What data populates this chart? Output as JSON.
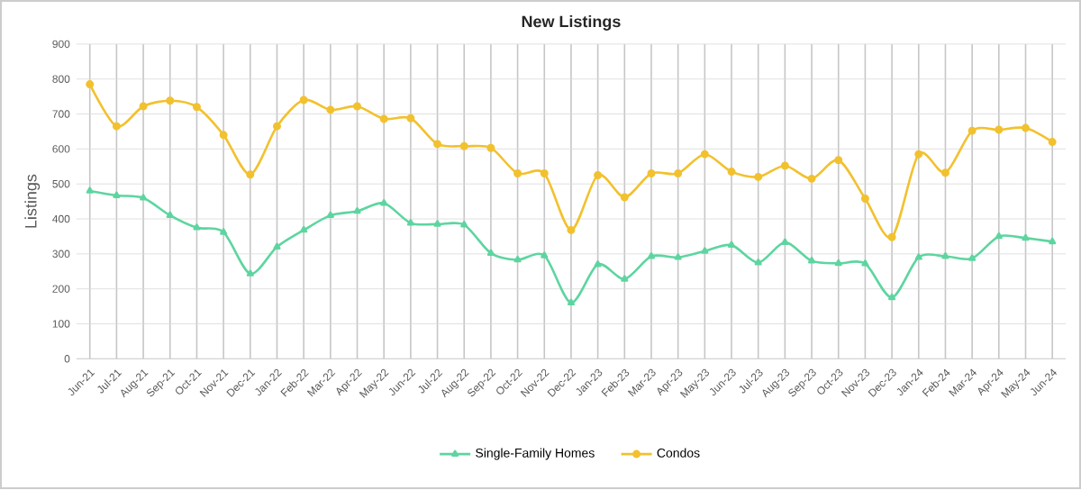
{
  "chart_data": {
    "type": "line",
    "title": "New Listings",
    "ylabel": "Listings",
    "categories": [
      "Jun-21",
      "Jul-21",
      "Aug-21",
      "Sep-21",
      "Oct-21",
      "Nov-21",
      "Dec-21",
      "Jan-22",
      "Feb-22",
      "Mar-22",
      "Apr-22",
      "May-22",
      "Jun-22",
      "Jul-22",
      "Aug-22",
      "Sep-22",
      "Oct-22",
      "Nov-22",
      "Dec-22",
      "Jan-23",
      "Feb-23",
      "Mar-23",
      "Apr-23",
      "May-23",
      "Jun-23",
      "Jul-23",
      "Aug-23",
      "Sep-23",
      "Oct-23",
      "Nov-23",
      "Dec-23",
      "Jan-24",
      "Feb-24",
      "Mar-24",
      "Apr-24",
      "May-24",
      "Jun-24"
    ],
    "series": [
      {
        "name": "Single-Family Homes",
        "color": "#5dd5a0",
        "marker": "triangle",
        "values": [
          480,
          467,
          460,
          410,
          375,
          362,
          243,
          320,
          368,
          410,
          422,
          445,
          388,
          385,
          383,
          302,
          283,
          295,
          160,
          270,
          228,
          293,
          290,
          308,
          325,
          275,
          333,
          280,
          273,
          272,
          175,
          290,
          293,
          287,
          350,
          345,
          335
        ]
      },
      {
        "name": "Condos",
        "color": "#f2c12e",
        "marker": "circle",
        "values": [
          785,
          665,
          722,
          738,
          720,
          640,
          527,
          665,
          740,
          712,
          722,
          686,
          688,
          614,
          608,
          603,
          530,
          530,
          368,
          525,
          462,
          530,
          530,
          585,
          535,
          520,
          552,
          515,
          568,
          458,
          348,
          585,
          532,
          652,
          655,
          660,
          620
        ]
      }
    ],
    "ylim": [
      0,
      900
    ],
    "yticks": [
      0,
      100,
      200,
      300,
      400,
      500,
      600,
      700,
      800,
      900
    ],
    "grid": true,
    "legend": "bottom",
    "line_style": "solid"
  }
}
